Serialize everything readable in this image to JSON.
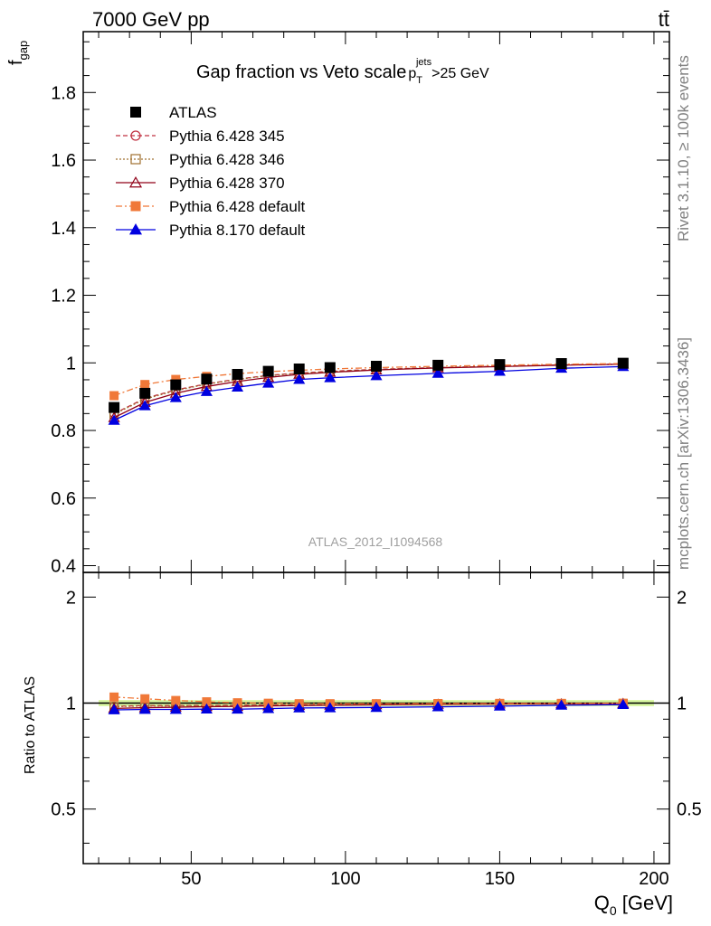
{
  "header": {
    "left": "7000 GeV pp",
    "right": "tt̄"
  },
  "side_labels": {
    "rivet": "Rivet 3.1.10, ≥ 100k events",
    "mcplots": "mcplots.cern.ch [arXiv:1306.3436]"
  },
  "watermark": "ATLAS_2012_I1094568",
  "chart_data": {
    "type": "line",
    "title": "Gap fraction vs Veto scale",
    "title_cut": {
      "p": "p",
      "sub": "T",
      "sup": "jets",
      "rest": ">25 GeV"
    },
    "xlabel": {
      "main": "Q",
      "sub": "0",
      "unit": " [GeV]"
    },
    "ylabel": {
      "main": "f",
      "sub": "gap"
    },
    "ratio_ylabel": "Ratio to ATLAS",
    "xlim": [
      15,
      205
    ],
    "ylim": [
      0.38,
      1.98
    ],
    "ratio_ylim": [
      0.35,
      2.35
    ],
    "x_ticks": [
      50,
      100,
      150,
      200
    ],
    "y_ticks": [
      0.4,
      0.6,
      0.8,
      1,
      1.2,
      1.4,
      1.6,
      1.8
    ],
    "ratio_ticks": [
      0.5,
      1,
      2
    ],
    "x": [
      25,
      35,
      45,
      55,
      65,
      75,
      85,
      95,
      110,
      130,
      150,
      170,
      190
    ],
    "legend_position": "top-left",
    "series": [
      {
        "name": "ATLAS",
        "color": "#000000",
        "marker": "square-filled",
        "dash": "none",
        "values": [
          0.868,
          0.91,
          0.935,
          0.952,
          0.966,
          0.975,
          0.982,
          0.986,
          0.99,
          0.993,
          0.995,
          0.998,
          0.999
        ]
      },
      {
        "name": "Pythia 6.428 345",
        "color": "#c03040",
        "marker": "circle-open",
        "dash": "5,3",
        "values": [
          0.85,
          0.895,
          0.92,
          0.938,
          0.952,
          0.963,
          0.97,
          0.975,
          0.981,
          0.986,
          0.99,
          0.994,
          0.996
        ]
      },
      {
        "name": "Pythia 6.428 346",
        "color": "#a07030",
        "marker": "square-open",
        "dash": "2,2",
        "values": [
          0.848,
          0.893,
          0.918,
          0.937,
          0.951,
          0.962,
          0.969,
          0.974,
          0.98,
          0.986,
          0.99,
          0.994,
          0.996
        ]
      },
      {
        "name": "Pythia 6.428 370",
        "color": "#900018",
        "marker": "triangle-open",
        "dash": "none",
        "values": [
          0.838,
          0.883,
          0.91,
          0.93,
          0.945,
          0.957,
          0.966,
          0.972,
          0.979,
          0.985,
          0.989,
          0.993,
          0.996
        ]
      },
      {
        "name": "Pythia 6.428 default",
        "color": "#f07838",
        "marker": "square-filled",
        "dash": "7,3,2,3",
        "values": [
          0.903,
          0.936,
          0.951,
          0.96,
          0.968,
          0.974,
          0.978,
          0.982,
          0.986,
          0.99,
          0.993,
          0.996,
          0.998
        ]
      },
      {
        "name": "Pythia 8.170 default",
        "color": "#0000e0",
        "marker": "triangle-filled",
        "dash": "none",
        "values": [
          0.83,
          0.873,
          0.897,
          0.915,
          0.928,
          0.94,
          0.951,
          0.956,
          0.962,
          0.969,
          0.975,
          0.984,
          0.989
        ]
      }
    ]
  }
}
